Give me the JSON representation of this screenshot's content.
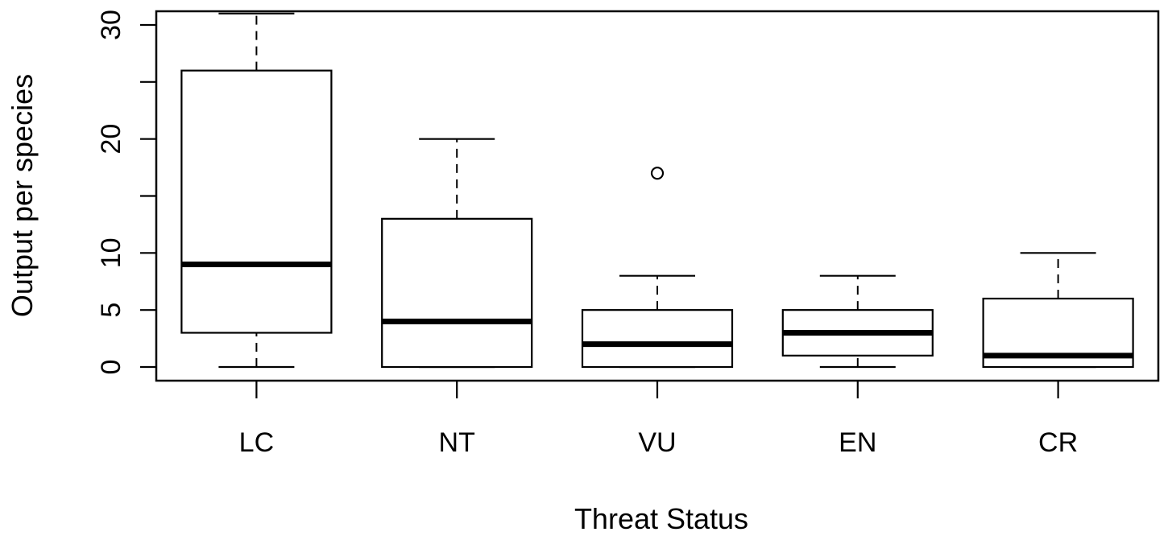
{
  "chart_data": {
    "type": "boxplot",
    "title": "",
    "xlabel": "Threat Status",
    "ylabel": "Output per species",
    "categories": [
      "LC",
      "NT",
      "VU",
      "EN",
      "CR"
    ],
    "y_ticks": [
      0,
      5,
      10,
      15,
      20,
      25,
      30
    ],
    "y_tick_labels": [
      "0",
      "5",
      "10",
      "",
      "20",
      "",
      "30"
    ],
    "ylim": [
      -1.2,
      31.2
    ],
    "grid": false,
    "boxes": [
      {
        "category": "LC",
        "min": 0,
        "q1": 3,
        "median": 9,
        "q3": 26,
        "max": 31,
        "outliers": []
      },
      {
        "category": "NT",
        "min": 0,
        "q1": 0,
        "median": 4,
        "q3": 13,
        "max": 20,
        "outliers": []
      },
      {
        "category": "VU",
        "min": 0,
        "q1": 0,
        "median": 2,
        "q3": 5,
        "max": 8,
        "outliers": [
          17
        ]
      },
      {
        "category": "EN",
        "min": 0,
        "q1": 1,
        "median": 3,
        "q3": 5,
        "max": 8,
        "outliers": []
      },
      {
        "category": "CR",
        "min": 0,
        "q1": 0,
        "median": 1,
        "q3": 6,
        "max": 10,
        "outliers": []
      }
    ]
  }
}
